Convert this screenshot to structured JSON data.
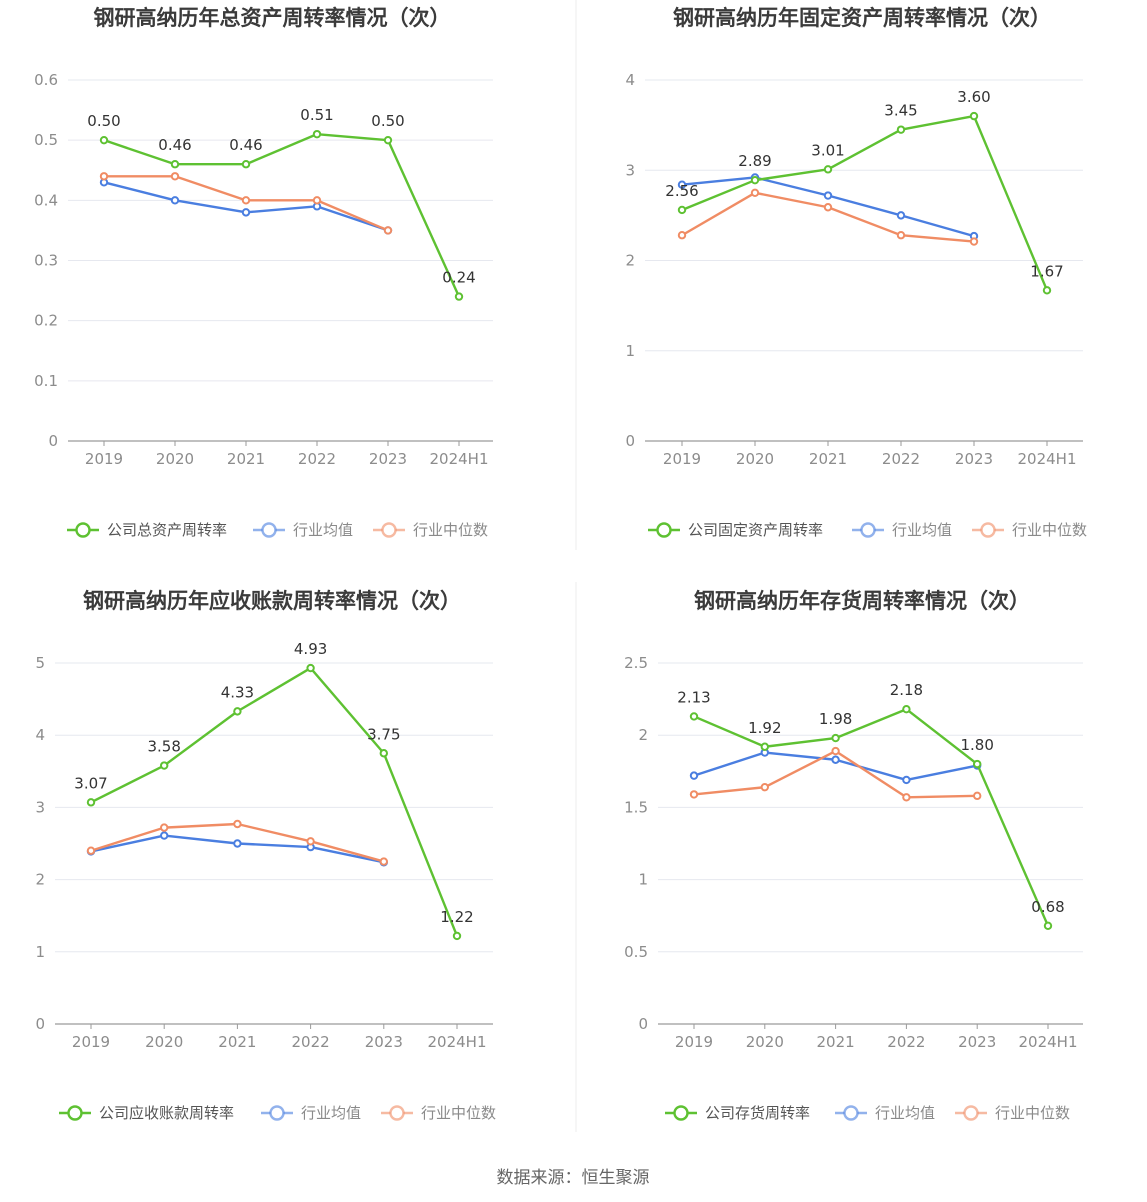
{
  "source": "数据来源：恒生聚源",
  "colors": {
    "company": "#5ec132",
    "mean": "#4a7ee0",
    "median": "#f08c64",
    "grid": "#e6e8ef",
    "axis": "#9a9a9a"
  },
  "legend_labels": {
    "mean": "行业均值",
    "median": "行业中位数"
  },
  "chart_data": [
    {
      "type": "line",
      "title": "钢研高纳历年总资产周转率情况（次）",
      "categories": [
        "2019",
        "2020",
        "2021",
        "2022",
        "2023",
        "2024H1"
      ],
      "ylim": [
        0,
        0.6
      ],
      "yticks": [
        0,
        0.1,
        0.2,
        0.3,
        0.4,
        0.5,
        0.6
      ],
      "ytick_labels": [
        "0",
        "0.1",
        "0.2",
        "0.3",
        "0.4",
        "0.5",
        "0.6"
      ],
      "grid": true,
      "legend_position": "bottom",
      "series": [
        {
          "key": "company",
          "name": "公司总资产周转率",
          "values": [
            0.5,
            0.46,
            0.46,
            0.51,
            0.5,
            0.24
          ],
          "labels": [
            "0.50",
            "0.46",
            "0.46",
            "0.51",
            "0.50",
            "0.24"
          ]
        },
        {
          "key": "mean",
          "name": "行业均值",
          "values": [
            0.43,
            0.4,
            0.38,
            0.39,
            0.35,
            null
          ]
        },
        {
          "key": "median",
          "name": "行业中位数",
          "values": [
            0.44,
            0.44,
            0.4,
            0.4,
            0.35,
            null
          ]
        }
      ]
    },
    {
      "type": "line",
      "title": "钢研高纳历年固定资产周转率情况（次）",
      "categories": [
        "2019",
        "2020",
        "2021",
        "2022",
        "2023",
        "2024H1"
      ],
      "ylim": [
        0,
        4
      ],
      "yticks": [
        0,
        1,
        2,
        3,
        4
      ],
      "ytick_labels": [
        "0",
        "1",
        "2",
        "3",
        "4"
      ],
      "grid": true,
      "legend_position": "bottom",
      "series": [
        {
          "key": "company",
          "name": "公司固定资产周转率",
          "values": [
            2.56,
            2.89,
            3.01,
            3.45,
            3.6,
            1.67
          ],
          "labels": [
            "2.56",
            "2.89",
            "3.01",
            "3.45",
            "3.60",
            "1.67"
          ]
        },
        {
          "key": "mean",
          "name": "行业均值",
          "values": [
            2.84,
            2.92,
            2.72,
            2.5,
            2.27,
            null
          ]
        },
        {
          "key": "median",
          "name": "行业中位数",
          "values": [
            2.28,
            2.75,
            2.59,
            2.28,
            2.21,
            null
          ]
        }
      ]
    },
    {
      "type": "line",
      "title": "钢研高纳历年应收账款周转率情况（次）",
      "categories": [
        "2019",
        "2020",
        "2021",
        "2022",
        "2023",
        "2024H1"
      ],
      "ylim": [
        0,
        5
      ],
      "yticks": [
        0,
        1,
        2,
        3,
        4,
        5
      ],
      "ytick_labels": [
        "0",
        "1",
        "2",
        "3",
        "4",
        "5"
      ],
      "grid": true,
      "legend_position": "bottom",
      "series": [
        {
          "key": "company",
          "name": "公司应收账款周转率",
          "values": [
            3.07,
            3.58,
            4.33,
            4.93,
            3.75,
            1.22
          ],
          "labels": [
            "3.07",
            "3.58",
            "4.33",
            "4.93",
            "3.75",
            "1.22"
          ]
        },
        {
          "key": "mean",
          "name": "行业均值",
          "values": [
            2.39,
            2.61,
            2.5,
            2.45,
            2.24,
            null
          ]
        },
        {
          "key": "median",
          "name": "行业中位数",
          "values": [
            2.4,
            2.72,
            2.77,
            2.53,
            2.25,
            null
          ]
        }
      ]
    },
    {
      "type": "line",
      "title": "钢研高纳历年存货周转率情况（次）",
      "categories": [
        "2019",
        "2020",
        "2021",
        "2022",
        "2023",
        "2024H1"
      ],
      "ylim": [
        0,
        2.5
      ],
      "yticks": [
        0,
        0.5,
        1,
        1.5,
        2,
        2.5
      ],
      "ytick_labels": [
        "0",
        "0.5",
        "1",
        "1.5",
        "2",
        "2.5"
      ],
      "grid": true,
      "legend_position": "bottom",
      "series": [
        {
          "key": "company",
          "name": "公司存货周转率",
          "values": [
            2.13,
            1.92,
            1.98,
            2.18,
            1.8,
            0.68
          ],
          "labels": [
            "2.13",
            "1.92",
            "1.98",
            "2.18",
            "1.80",
            "0.68"
          ]
        },
        {
          "key": "mean",
          "name": "行业均值",
          "values": [
            1.72,
            1.88,
            1.83,
            1.69,
            1.79,
            null
          ]
        },
        {
          "key": "median",
          "name": "行业中位数",
          "values": [
            1.59,
            1.64,
            1.89,
            1.57,
            1.58,
            null
          ]
        }
      ]
    }
  ]
}
